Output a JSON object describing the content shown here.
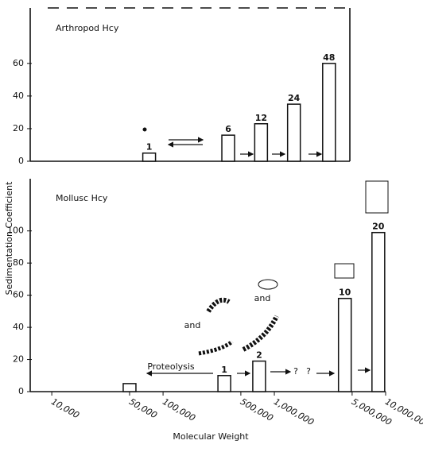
{
  "chart_data": [
    {
      "type": "bar",
      "title": "Arthropod Hcy",
      "ylabel": "Sedimentation Coefficient",
      "xscale": "log",
      "xlim": [
        6400,
        12800000
      ],
      "ylim": [
        0,
        94
      ],
      "yticks": [
        0,
        20,
        40,
        60
      ],
      "x": [
        75000,
        385000,
        760000,
        1500000,
        3100000
      ],
      "values": [
        5,
        16,
        23,
        35,
        60
      ],
      "labels": [
        "1",
        "6",
        "12",
        "24",
        "48"
      ],
      "color": "#ffffff"
    },
    {
      "type": "bar",
      "title": "Mollusc Hcy",
      "xlabel": "Molecular Weight",
      "xscale": "log",
      "xlim": [
        6400,
        12800000
      ],
      "ylim": [
        0,
        130
      ],
      "yticks": [
        0,
        20,
        40,
        60,
        80,
        100
      ],
      "xticks": [
        {
          "value": 10000,
          "label": "10,000"
        },
        {
          "value": 50000,
          "label": "50,000"
        },
        {
          "value": 100000,
          "label": "100,000"
        },
        {
          "value": 500000,
          "label": "500,000"
        },
        {
          "value": 1000000,
          "label": "1,000,000"
        },
        {
          "value": 5000000,
          "label": "5,000,000"
        },
        {
          "value": 10000000,
          "label": "10,000,000"
        }
      ],
      "x": [
        50000,
        355000,
        730000,
        4300000,
        8600000
      ],
      "values": [
        5,
        10,
        19,
        58,
        99
      ],
      "labels": [
        null,
        "1",
        "2",
        "10",
        "20"
      ],
      "color": "#ffffff",
      "annotations": [
        "Proteolysis",
        "and",
        "and",
        "?",
        "?"
      ]
    }
  ]
}
